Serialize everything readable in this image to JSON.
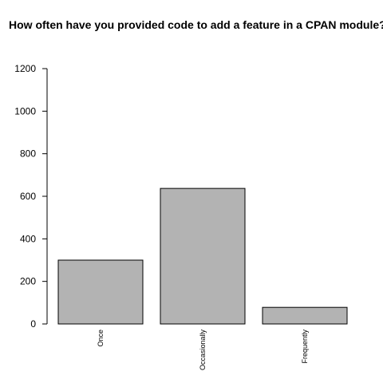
{
  "chart_data": {
    "type": "bar",
    "title": "How often have you provided code to add a feature in a CPAN module?",
    "categories": [
      "Once",
      "Occasionally",
      "Frequently"
    ],
    "values": [
      300,
      637,
      78
    ],
    "ylim": [
      0,
      1200
    ],
    "yticks": [
      "0",
      "200",
      "400",
      "600",
      "800",
      "1000",
      "1200"
    ],
    "xlabel": "",
    "ylabel": "",
    "grid": false,
    "bar_color": "#b3b3b3",
    "bar_stroke": "#000000"
  }
}
